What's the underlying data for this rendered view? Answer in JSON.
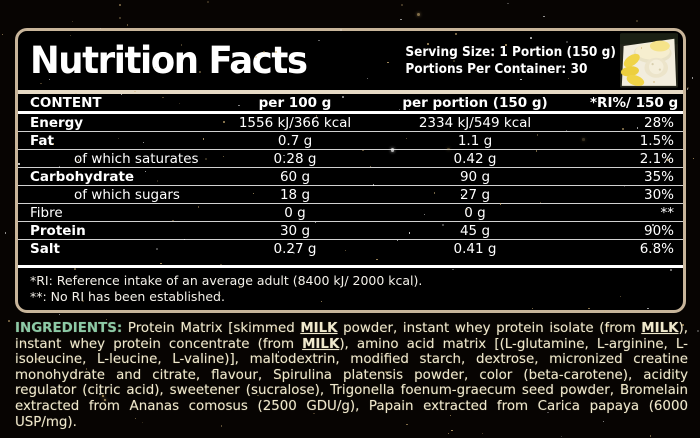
{
  "panel": {
    "title": "Nutrition Facts",
    "serving_size": "Serving Size: 1 Portion (150 g)",
    "portions_per_container": "Portions Per Container: 30",
    "footnotes": [
      "*RI: Reference intake of an average adult (8400 kJ/ 2000 kcal).",
      "**: No RI has been established."
    ]
  },
  "table": {
    "columns": [
      "CONTENT",
      "per 100 g",
      "per portion (150 g)",
      "*RI%/ 150 g"
    ],
    "rows": [
      {
        "label": "Energy",
        "per_100g": "1556 kJ/366 kcal",
        "per_portion": "2334 kJ/549 kcal",
        "ri": "28%",
        "bold": true,
        "indent": false
      },
      {
        "label": "Fat",
        "per_100g": "0.7 g",
        "per_portion": "1.1 g",
        "ri": "1.5%",
        "bold": true,
        "indent": false
      },
      {
        "label": "of which saturates",
        "per_100g": "0.28 g",
        "per_portion": "0.42 g",
        "ri": "2.1%",
        "bold": false,
        "indent": true
      },
      {
        "label": "Carbohydrate",
        "per_100g": "60 g",
        "per_portion": "90 g",
        "ri": "35%",
        "bold": true,
        "indent": false
      },
      {
        "label": "of which sugars",
        "per_100g": "18 g",
        "per_portion": "27 g",
        "ri": "30%",
        "bold": false,
        "indent": true
      },
      {
        "label": "Fibre",
        "per_100g": "0 g",
        "per_portion": "0 g",
        "ri": "**",
        "bold": false,
        "indent": false
      },
      {
        "label": "Protein",
        "per_100g": "30 g",
        "per_portion": "45 g",
        "ri": "90%",
        "bold": true,
        "indent": false
      },
      {
        "label": "Salt",
        "per_100g": "0.27 g",
        "per_portion": "0.41 g",
        "ri": "6.8%",
        "bold": true,
        "indent": false
      }
    ]
  },
  "ingredients": {
    "label": "INGREDIENTS:",
    "segments": [
      {
        "text": " Protein Matrix [skimmed ",
        "allergen": false
      },
      {
        "text": "MILK",
        "allergen": true
      },
      {
        "text": " powder, instant whey protein isolate (from ",
        "allergen": false
      },
      {
        "text": "MILK",
        "allergen": true
      },
      {
        "text": "), instant whey protein concentrate (from ",
        "allergen": false
      },
      {
        "text": "MILK",
        "allergen": true
      },
      {
        "text": "), amino acid matrix [(L-glutamine, L-arginine, L-isoleucine, L-leucine, L-valine)], maltodextrin, modified starch, dextrose, micronized creatine monohydrate and citrate, flavour, Spirulina platensis powder, color (beta-carotene), acidity regulator (citric acid), sweetener (sucralose), Trigonella foenum-graecum seed powder, Bromelain extracted from Ananas comosus (2500 GDU/g), Papain extracted from Carica papaya (6000 USP/mg).",
        "allergen": false
      }
    ]
  },
  "colors": {
    "panel_border": "#c8b59a",
    "table_text": "#ffffff",
    "ingredients_label": "#8ccaa6",
    "ingredients_text": "#f0e9cd",
    "star_gold": "#d2b377"
  }
}
